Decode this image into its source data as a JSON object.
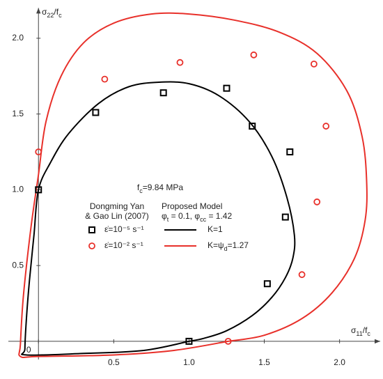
{
  "chart_data": {
    "type": "scatter-line",
    "xlabel": [
      "σ",
      "11",
      "/f",
      "c"
    ],
    "ylabel": [
      "σ",
      "22",
      "/f",
      "c"
    ],
    "annotation": [
      "f",
      "c",
      "=9.84 MPa"
    ],
    "legend_headers": [
      [
        "Dongming Yan",
        "& Gao Lin (2007)"
      ],
      [
        "Proposed Model",
        [
          "φ",
          "t",
          " = 0.1, φ",
          "cc",
          " = 1.42"
        ]
      ]
    ],
    "xlim": [
      -0.2,
      2.27
    ],
    "ylim": [
      -0.12,
      2.2
    ],
    "xticks": [
      0,
      0.5,
      {
        "value": 1,
        "label": "1.0"
      },
      1.5,
      {
        "value": 2,
        "label": "2.0"
      }
    ],
    "yticks": [
      0.5,
      {
        "value": 1,
        "label": "1.0"
      },
      1.5,
      {
        "value": 2,
        "label": "2.0"
      }
    ],
    "series": [
      {
        "name": "ε̇=10⁻⁵ s⁻¹",
        "color": "#000000",
        "marker": "square",
        "x": [
          0,
          0.38,
          0.83,
          1.25,
          1.42,
          1.67,
          1.64,
          1.52,
          1.0
        ],
        "values": [
          1.0,
          1.51,
          1.64,
          1.67,
          1.42,
          1.25,
          0.82,
          0.38,
          0
        ]
      },
      {
        "name": "ε̇=10⁻² s⁻¹",
        "color": "#e8302a",
        "marker": "circle",
        "x": [
          0,
          0.44,
          0.94,
          1.43,
          1.83,
          1.91,
          1.85,
          1.75,
          1.26
        ],
        "values": [
          1.25,
          1.73,
          1.84,
          1.89,
          1.83,
          1.42,
          0.92,
          0.44,
          0
        ]
      }
    ],
    "lines": [
      {
        "name": [
          "K=1"
        ],
        "color": "#000000",
        "x": [
          1.0,
          0.7,
          0.3,
          -0.08,
          -0.09,
          -0.08,
          -0.06,
          -0.03,
          0,
          0.08,
          0.2,
          0.4,
          0.6,
          0.8,
          1.0,
          1.2,
          1.4,
          1.55,
          1.65,
          1.7,
          1.69,
          1.64,
          1.55,
          1.42,
          1.25,
          1.1,
          1.0
        ],
        "values": [
          0,
          -0.06,
          -0.08,
          -0.09,
          -0.05,
          0.15,
          0.4,
          0.7,
          1.0,
          1.18,
          1.37,
          1.57,
          1.68,
          1.71,
          1.7,
          1.62,
          1.45,
          1.22,
          0.95,
          0.7,
          0.55,
          0.42,
          0.29,
          0.17,
          0.07,
          0.02,
          0
        ]
      },
      {
        "name": [
          "K=ψ",
          "d",
          "=1.27"
        ],
        "color": "#e8302a",
        "x": [
          1.26,
          0.9,
          0.5,
          0,
          -0.12,
          -0.12,
          -0.1,
          -0.05,
          0,
          0.05,
          0.15,
          0.3,
          0.5,
          0.75,
          1.0,
          1.3,
          1.6,
          1.85,
          2.05,
          2.15,
          2.18,
          2.17,
          2.1,
          1.95,
          1.75,
          1.5,
          1.26
        ],
        "values": [
          0,
          -0.06,
          -0.09,
          -0.1,
          -0.1,
          -0.02,
          0.3,
          0.75,
          1.1,
          1.45,
          1.75,
          1.97,
          2.1,
          2.16,
          2.16,
          2.12,
          2.04,
          1.9,
          1.65,
          1.35,
          1.05,
          0.8,
          0.55,
          0.32,
          0.15,
          0.04,
          0
        ]
      }
    ]
  }
}
